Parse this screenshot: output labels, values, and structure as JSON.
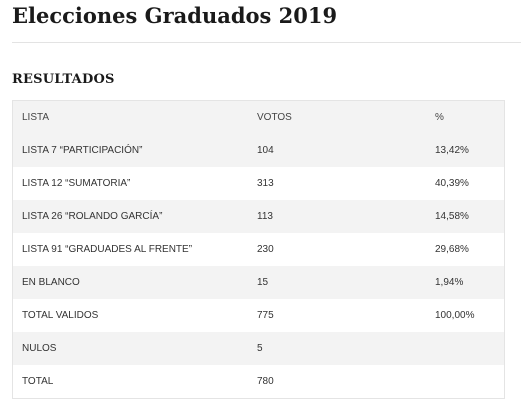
{
  "page": {
    "title": "Elecciones Graduados 2019"
  },
  "section": {
    "heading": "RESULTADOS"
  },
  "table": {
    "headers": [
      "LISTA",
      "VOTOS",
      "%"
    ],
    "rows": [
      [
        "LISTA 7 “PARTICIPACIÓN”",
        "104",
        "13,42%"
      ],
      [
        "LISTA 12 “SUMATORIA”",
        "313",
        "40,39%"
      ],
      [
        "LISTA 26 “ROLANDO GARCÍA”",
        "113",
        "14,58%"
      ],
      [
        "LISTA 91 “GRADUADES AL FRENTE”",
        "230",
        "29,68%"
      ],
      [
        "EN BLANCO",
        "15",
        "1,94%"
      ],
      [
        "TOTAL VALIDOS",
        "775",
        "100,00%"
      ],
      [
        "NULOS",
        "5",
        ""
      ],
      [
        "TOTAL",
        "780",
        ""
      ]
    ]
  }
}
